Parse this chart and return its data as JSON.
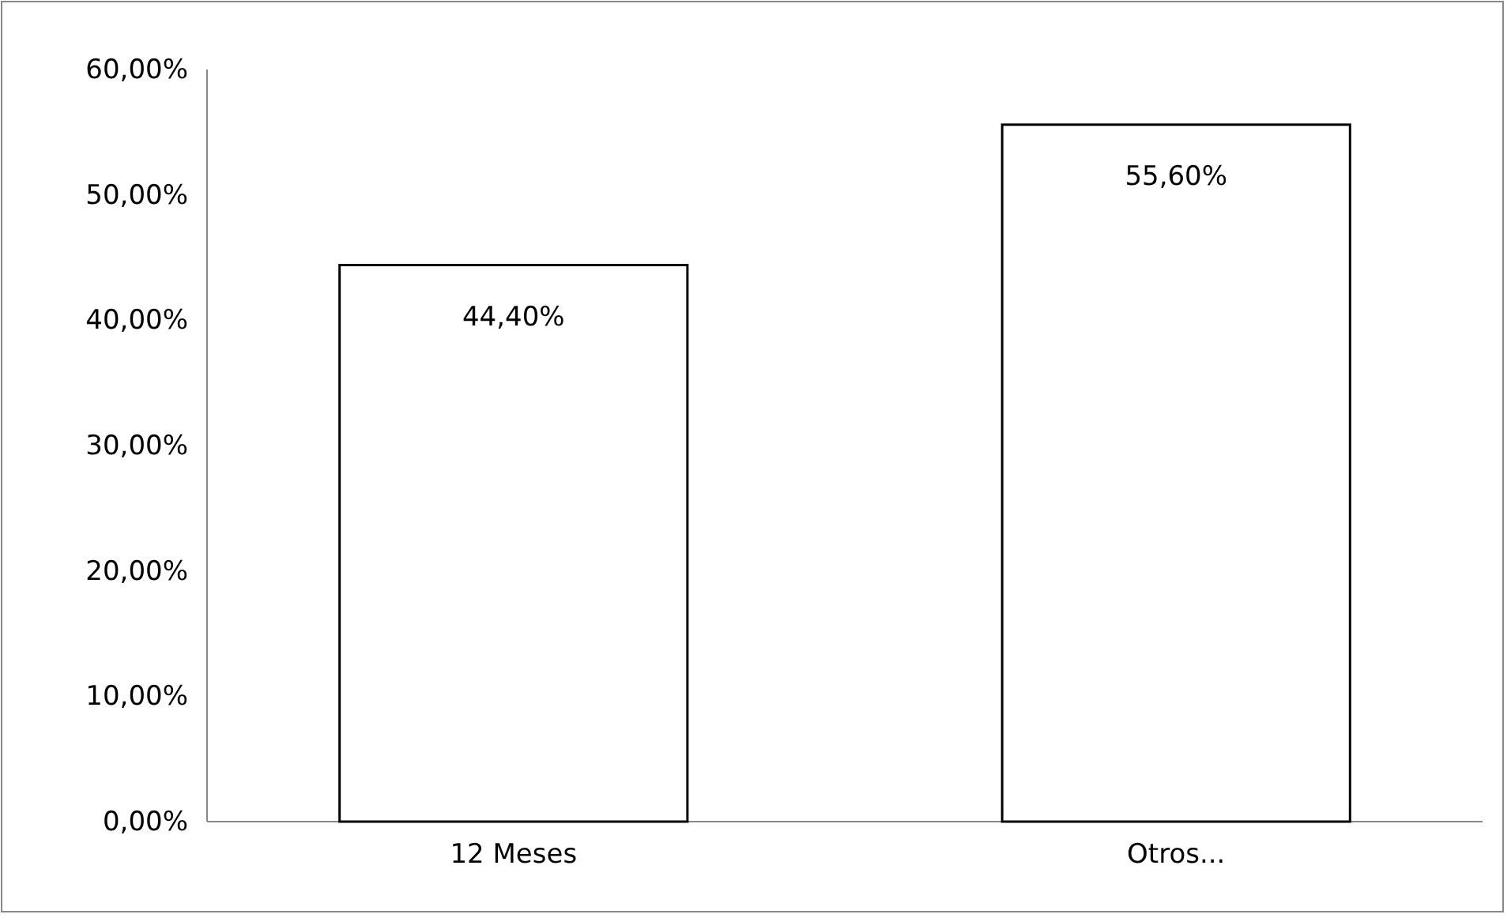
{
  "chart_data": {
    "type": "bar",
    "categories": [
      "12 Meses",
      "Otros..."
    ],
    "values": [
      44.4,
      55.6
    ],
    "color": "#ffffff",
    "value_labels": [
      "44,40%",
      "55,60%"
    ],
    "ylim": [
      0,
      60
    ],
    "yticks": [
      {
        "value": 0,
        "label": "0,00%"
      },
      {
        "value": 10,
        "label": "10,00%"
      },
      {
        "value": 20,
        "label": "20,00%"
      },
      {
        "value": 30,
        "label": "30,00%"
      },
      {
        "value": 40,
        "label": "40,00%"
      },
      {
        "value": 50,
        "label": "50,00%"
      },
      {
        "value": 60,
        "label": "60,00%"
      }
    ],
    "grid": false
  }
}
